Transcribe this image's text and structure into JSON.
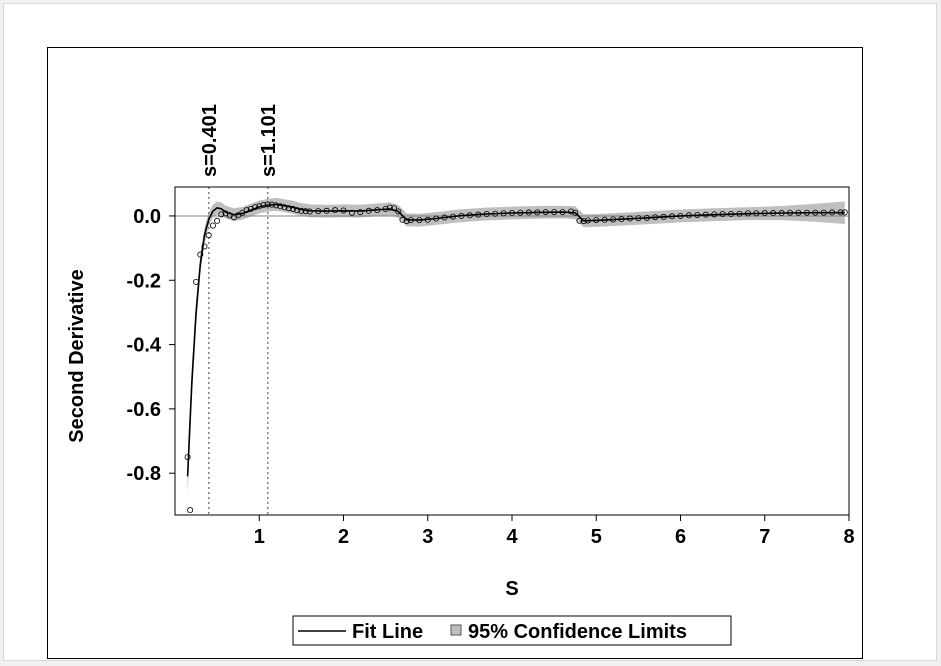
{
  "chart_data": {
    "type": "line",
    "xlabel": "S",
    "ylabel": "Second Derivative",
    "xlim": [
      0.0,
      8.0
    ],
    "ylim": [
      -0.93,
      0.09
    ],
    "xticks": [
      1,
      2,
      3,
      4,
      5,
      6,
      7,
      8
    ],
    "yticks": [
      0.0,
      -0.2,
      -0.4,
      -0.6,
      -0.8
    ],
    "ytick_labels": [
      "0.0",
      "-0.2",
      "-0.4",
      "-0.6",
      "-0.8"
    ],
    "reference_line_y": 0.0,
    "reference_lines_x": [
      {
        "value": 0.401,
        "label": "s=0.401"
      },
      {
        "value": 1.101,
        "label": "s=1.101"
      }
    ],
    "legend": {
      "position": "bottom-center",
      "entries": [
        "Fit Line",
        "95% Confidence Limits"
      ]
    },
    "colors": {
      "fit": "#000000",
      "band": "#bfbfbf",
      "points": "#000000",
      "reference": "#7f7f7f"
    },
    "fit_line": {
      "x": [
        0.15,
        0.2,
        0.25,
        0.3,
        0.35,
        0.401,
        0.45,
        0.5,
        0.55,
        0.6,
        0.7,
        0.8,
        0.9,
        1.0,
        1.1,
        1.2,
        1.3,
        1.4,
        1.5,
        1.6,
        1.8,
        2.0,
        2.2,
        2.4,
        2.55,
        2.65,
        2.75,
        2.9,
        3.1,
        3.4,
        3.7,
        4.0,
        4.3,
        4.6,
        4.75,
        4.85,
        5.0,
        5.3,
        5.6,
        6.0,
        6.4,
        6.8,
        7.2,
        7.6,
        7.95
      ],
      "y": [
        -0.81,
        -0.52,
        -0.3,
        -0.15,
        -0.06,
        -0.01,
        0.015,
        0.025,
        0.022,
        0.012,
        0.004,
        0.008,
        0.018,
        0.028,
        0.033,
        0.036,
        0.032,
        0.027,
        0.02,
        0.016,
        0.015,
        0.016,
        0.015,
        0.019,
        0.022,
        0.014,
        -0.012,
        -0.013,
        -0.008,
        0.001,
        0.006,
        0.009,
        0.011,
        0.012,
        0.01,
        -0.015,
        -0.014,
        -0.01,
        -0.006,
        0.0,
        0.004,
        0.007,
        0.009,
        0.01,
        0.01
      ],
      "band_halfwidth": [
        0.06,
        0.05,
        0.04,
        0.03,
        0.025,
        0.022,
        0.02,
        0.02,
        0.02,
        0.02,
        0.02,
        0.02,
        0.02,
        0.02,
        0.02,
        0.02,
        0.02,
        0.02,
        0.02,
        0.02,
        0.02,
        0.02,
        0.02,
        0.02,
        0.02,
        0.02,
        0.02,
        0.02,
        0.02,
        0.02,
        0.02,
        0.02,
        0.02,
        0.02,
        0.02,
        0.02,
        0.02,
        0.02,
        0.02,
        0.02,
        0.02,
        0.02,
        0.022,
        0.028,
        0.035
      ]
    },
    "observed_points": {
      "x": [
        0.15,
        0.18,
        0.25,
        0.3,
        0.35,
        0.4,
        0.45,
        0.5,
        0.55,
        0.6,
        0.65,
        0.7,
        0.75,
        0.8,
        0.85,
        0.9,
        0.95,
        1.0,
        1.05,
        1.1,
        1.15,
        1.2,
        1.25,
        1.3,
        1.35,
        1.4,
        1.45,
        1.5,
        1.55,
        1.6,
        1.7,
        1.8,
        1.9,
        2.0,
        2.1,
        2.2,
        2.3,
        2.4,
        2.5,
        2.55,
        2.6,
        2.65,
        2.7,
        2.75,
        2.8,
        2.9,
        3.0,
        3.1,
        3.2,
        3.3,
        3.4,
        3.5,
        3.6,
        3.7,
        3.8,
        3.9,
        4.0,
        4.1,
        4.2,
        4.3,
        4.4,
        4.5,
        4.6,
        4.7,
        4.75,
        4.8,
        4.85,
        4.9,
        5.0,
        5.1,
        5.2,
        5.3,
        5.4,
        5.5,
        5.6,
        5.7,
        5.8,
        5.9,
        6.0,
        6.1,
        6.2,
        6.3,
        6.4,
        6.5,
        6.6,
        6.7,
        6.8,
        6.9,
        7.0,
        7.1,
        7.2,
        7.3,
        7.4,
        7.5,
        7.6,
        7.7,
        7.8,
        7.9,
        7.95
      ],
      "y": [
        -0.75,
        -0.915,
        -0.205,
        -0.12,
        -0.095,
        -0.06,
        -0.03,
        -0.015,
        0.005,
        0.008,
        0.002,
        -0.004,
        0.002,
        0.01,
        0.018,
        0.022,
        0.027,
        0.03,
        0.034,
        0.036,
        0.035,
        0.033,
        0.03,
        0.027,
        0.024,
        0.022,
        0.018,
        0.016,
        0.015,
        0.014,
        0.015,
        0.016,
        0.018,
        0.017,
        0.01,
        0.012,
        0.016,
        0.018,
        0.022,
        0.026,
        0.024,
        0.014,
        -0.012,
        -0.016,
        -0.013,
        -0.013,
        -0.012,
        -0.008,
        -0.005,
        -0.002,
        0.0,
        0.002,
        0.004,
        0.006,
        0.007,
        0.008,
        0.009,
        0.01,
        0.011,
        0.011,
        0.012,
        0.012,
        0.012,
        0.014,
        0.01,
        -0.015,
        -0.016,
        -0.014,
        -0.013,
        -0.012,
        -0.011,
        -0.01,
        -0.008,
        -0.007,
        -0.006,
        -0.004,
        -0.003,
        -0.001,
        0.0,
        0.002,
        0.003,
        0.004,
        0.005,
        0.006,
        0.006,
        0.007,
        0.008,
        0.008,
        0.009,
        0.009,
        0.009,
        0.01,
        0.01,
        0.01,
        0.01,
        0.01,
        0.011,
        0.011,
        0.011
      ]
    }
  }
}
